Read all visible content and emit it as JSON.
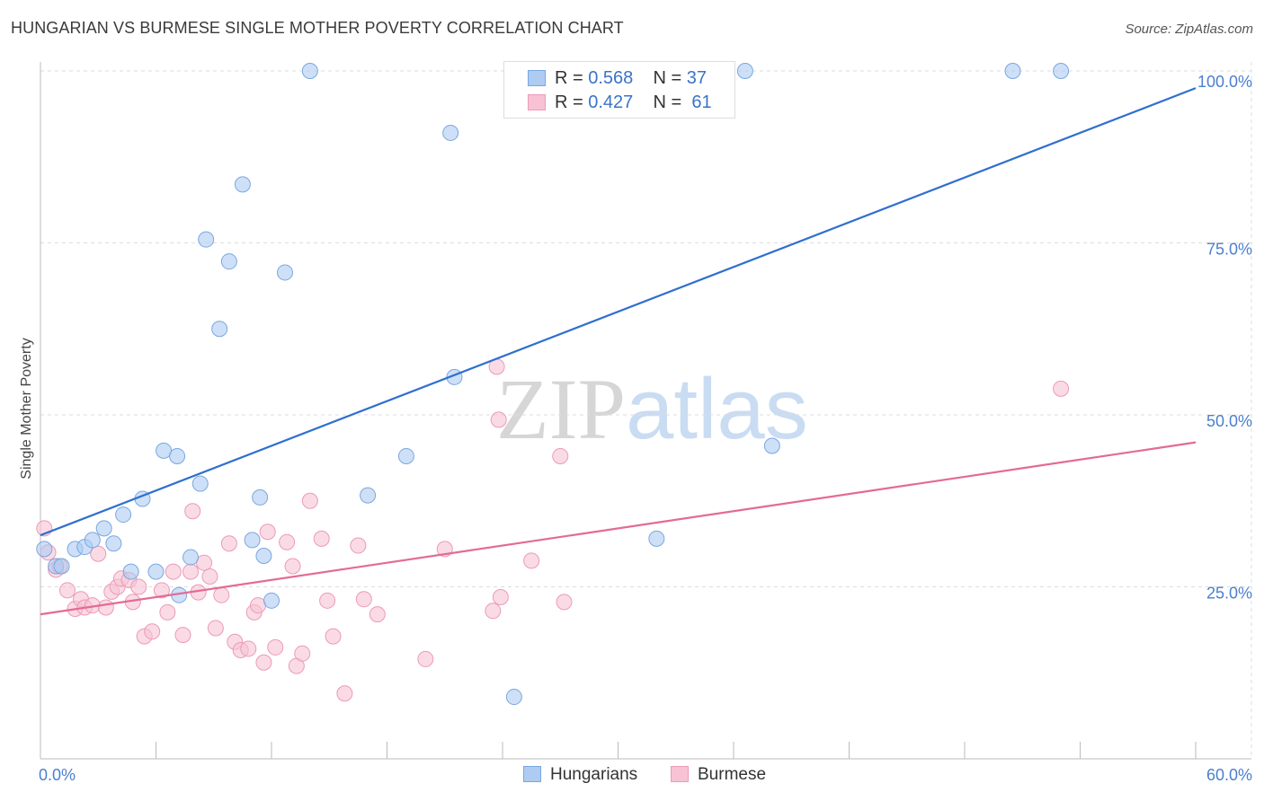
{
  "title": "HUNGARIAN VS BURMESE SINGLE MOTHER POVERTY CORRELATION CHART",
  "source": "Source: ZipAtlas.com",
  "watermark": {
    "zip": "ZIP",
    "atlas": "atlas"
  },
  "legend": {
    "r_label": "R = ",
    "n_label": "N = ",
    "items": [
      {
        "r": "0.568",
        "n": "37"
      },
      {
        "r": "0.427",
        "n": "61"
      }
    ]
  },
  "colors": {
    "hungarians_fill": "#aecbf1",
    "hungarians_stroke": "#7aa7e0",
    "hungarians_line": "#2f6fcf",
    "burmese_fill": "#f7c3d4",
    "burmese_stroke": "#ec9ab6",
    "burmese_line": "#e36a97",
    "grid": "#dddddd",
    "tick_text": "#4a7fd0"
  },
  "chart_data": {
    "type": "scatter",
    "title": "HUNGARIAN VS BURMESE SINGLE MOTHER POVERTY CORRELATION CHART",
    "xlabel": "",
    "ylabel": "Single Mother Poverty",
    "xlim": [
      0,
      60
    ],
    "ylim": [
      0,
      105
    ],
    "x_tick_labels": {
      "min": "0.0%",
      "max": "60.0%"
    },
    "y_ticks": [
      25,
      50,
      75,
      100
    ],
    "y_tick_labels": [
      "25.0%",
      "50.0%",
      "75.0%",
      "100.0%"
    ],
    "grid": true,
    "series": [
      {
        "name": "Hungarians",
        "r": 0.568,
        "n": 37,
        "trend": {
          "x0": 0,
          "y0": 32.5,
          "x1": 60,
          "y1": 97.5
        },
        "points": [
          [
            0.2,
            30.5
          ],
          [
            0.8,
            28.0
          ],
          [
            1.1,
            28.0
          ],
          [
            1.8,
            30.5
          ],
          [
            2.3,
            30.8
          ],
          [
            2.7,
            31.8
          ],
          [
            3.3,
            33.5
          ],
          [
            3.8,
            31.3
          ],
          [
            4.3,
            35.5
          ],
          [
            4.7,
            27.2
          ],
          [
            5.3,
            37.8
          ],
          [
            6.0,
            27.2
          ],
          [
            6.4,
            44.8
          ],
          [
            7.1,
            44.0
          ],
          [
            7.2,
            23.8
          ],
          [
            7.8,
            29.3
          ],
          [
            8.3,
            40.0
          ],
          [
            8.6,
            75.5
          ],
          [
            9.3,
            62.5
          ],
          [
            9.8,
            72.3
          ],
          [
            10.5,
            83.5
          ],
          [
            11.0,
            31.8
          ],
          [
            11.4,
            38.0
          ],
          [
            11.6,
            29.5
          ],
          [
            12.0,
            23.0
          ],
          [
            12.7,
            70.7
          ],
          [
            14.0,
            100.0
          ],
          [
            17.0,
            38.3
          ],
          [
            19.0,
            44.0
          ],
          [
            21.3,
            91.0
          ],
          [
            21.5,
            55.5
          ],
          [
            24.6,
            9.0
          ],
          [
            32.0,
            32.0
          ],
          [
            36.6,
            100.0
          ],
          [
            38.0,
            45.5
          ],
          [
            50.5,
            100.0
          ],
          [
            53.0,
            100.0
          ]
        ]
      },
      {
        "name": "Burmese",
        "r": 0.427,
        "n": 61,
        "trend": {
          "x0": 0,
          "y0": 21.0,
          "x1": 60,
          "y1": 46.0
        },
        "points": [
          [
            0.2,
            33.5
          ],
          [
            0.4,
            30.0
          ],
          [
            0.8,
            27.5
          ],
          [
            1.0,
            28.0
          ],
          [
            1.4,
            24.5
          ],
          [
            1.8,
            21.8
          ],
          [
            2.1,
            23.2
          ],
          [
            2.3,
            22.0
          ],
          [
            2.7,
            22.3
          ],
          [
            3.0,
            29.8
          ],
          [
            3.4,
            22.0
          ],
          [
            3.7,
            24.3
          ],
          [
            4.0,
            25.0
          ],
          [
            4.2,
            26.2
          ],
          [
            4.6,
            26.0
          ],
          [
            4.8,
            22.8
          ],
          [
            5.1,
            25.0
          ],
          [
            5.4,
            17.8
          ],
          [
            5.8,
            18.5
          ],
          [
            6.3,
            24.5
          ],
          [
            6.6,
            21.3
          ],
          [
            6.9,
            27.2
          ],
          [
            7.4,
            18.0
          ],
          [
            7.8,
            27.2
          ],
          [
            7.9,
            36.0
          ],
          [
            8.2,
            24.2
          ],
          [
            8.5,
            28.5
          ],
          [
            8.8,
            26.5
          ],
          [
            9.1,
            19.0
          ],
          [
            9.4,
            23.8
          ],
          [
            9.8,
            31.3
          ],
          [
            10.1,
            17.0
          ],
          [
            10.4,
            15.8
          ],
          [
            10.8,
            16.0
          ],
          [
            11.1,
            21.3
          ],
          [
            11.3,
            22.3
          ],
          [
            11.6,
            14.0
          ],
          [
            11.8,
            33.0
          ],
          [
            12.2,
            16.2
          ],
          [
            12.8,
            31.5
          ],
          [
            13.1,
            28.0
          ],
          [
            13.3,
            13.5
          ],
          [
            13.6,
            15.3
          ],
          [
            14.0,
            37.5
          ],
          [
            14.6,
            32.0
          ],
          [
            14.9,
            23.0
          ],
          [
            15.2,
            17.8
          ],
          [
            15.8,
            9.5
          ],
          [
            16.5,
            31.0
          ],
          [
            16.8,
            23.2
          ],
          [
            17.5,
            21.0
          ],
          [
            20.0,
            14.5
          ],
          [
            21.0,
            30.5
          ],
          [
            23.5,
            21.5
          ],
          [
            23.7,
            57.0
          ],
          [
            23.8,
            49.3
          ],
          [
            23.9,
            23.5
          ],
          [
            25.5,
            28.8
          ],
          [
            27.0,
            44.0
          ],
          [
            27.2,
            22.8
          ],
          [
            53.0,
            53.8
          ]
        ]
      }
    ]
  }
}
